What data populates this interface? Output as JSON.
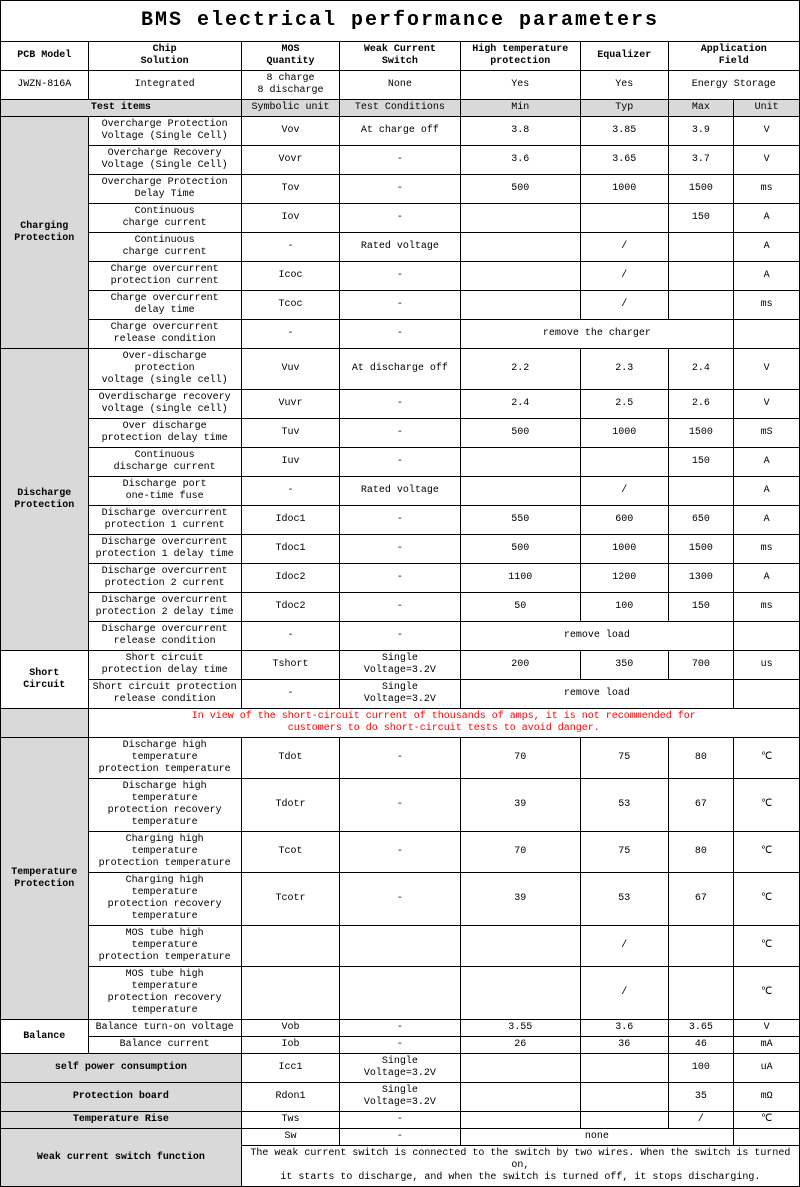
{
  "title": "BMS electrical performance parameters",
  "top_headers": [
    "PCB Model",
    "Chip\nSolution",
    "MOS\nQuantity",
    "Weak Current\nSwitch",
    "High temperature\nprotection",
    "Equalizer",
    "Application\nField"
  ],
  "top_values": [
    "JWZN-816A",
    "Integrated",
    "8 charge\n8 discharge",
    "None",
    "Yes",
    "Yes",
    "Energy Storage"
  ],
  "sub_headers": [
    "Test items",
    "Symbolic unit",
    "Test Conditions",
    "Min",
    "Typ",
    "Max",
    "Unit"
  ],
  "sections": {
    "charging": {
      "label": "Charging\nProtection",
      "rows": [
        {
          "item": "Overcharge Protection\nVoltage (Single Cell)",
          "sym": "Vov",
          "cond": "At charge off",
          "min": "3.8",
          "typ": "3.85",
          "max": "3.9",
          "unit": "V"
        },
        {
          "item": "Overcharge Recovery\nVoltage (Single Cell)",
          "sym": "Vovr",
          "cond": "-",
          "min": "3.6",
          "typ": "3.65",
          "max": "3.7",
          "unit": "V"
        },
        {
          "item": "Overcharge Protection\nDelay Time",
          "sym": "Tov",
          "cond": "-",
          "min": "500",
          "typ": "1000",
          "max": "1500",
          "unit": "ms"
        },
        {
          "item": "Continuous\ncharge current",
          "sym": "Iov",
          "cond": "-",
          "min": "",
          "typ": "",
          "max": "150",
          "unit": "A"
        },
        {
          "item": "Continuous\ncharge current",
          "sym": "-",
          "cond": "Rated voltage",
          "min": "",
          "typ": "/",
          "max": "",
          "unit": "A"
        },
        {
          "item": "Charge overcurrent\nprotection current",
          "sym": "Icoc",
          "cond": "-",
          "min": "",
          "typ": "/",
          "max": "",
          "unit": "A"
        },
        {
          "item": "Charge overcurrent\ndelay time",
          "sym": "Tcoc",
          "cond": "-",
          "min": "",
          "typ": "/",
          "max": "",
          "unit": "ms"
        },
        {
          "item": "Charge overcurrent\nrelease condition",
          "sym": "-",
          "cond": "-",
          "merged": "remove the charger",
          "unit": ""
        }
      ]
    },
    "discharge": {
      "label": "Discharge\nProtection",
      "rows": [
        {
          "item": "Over-discharge protection\nvoltage (single cell)",
          "sym": "Vuv",
          "cond": "At discharge off",
          "min": "2.2",
          "typ": "2.3",
          "max": "2.4",
          "unit": "V"
        },
        {
          "item": "Overdischarge recovery\nvoltage (single cell)",
          "sym": "Vuvr",
          "cond": "-",
          "min": "2.4",
          "typ": "2.5",
          "max": "2.6",
          "unit": "V"
        },
        {
          "item": "Over discharge\nprotection delay time",
          "sym": "Tuv",
          "cond": "-",
          "min": "500",
          "typ": "1000",
          "max": "1500",
          "unit": "mS"
        },
        {
          "item": "Continuous\ndischarge current",
          "sym": "Iuv",
          "cond": "-",
          "min": "",
          "typ": "",
          "max": "150",
          "unit": "A"
        },
        {
          "item": "Discharge port\none-time fuse",
          "sym": "-",
          "cond": "Rated voltage",
          "min": "",
          "typ": "/",
          "max": "",
          "unit": "A"
        },
        {
          "item": "Discharge overcurrent\nprotection 1 current",
          "sym": "Idoc1",
          "cond": "-",
          "min": "550",
          "typ": "600",
          "max": "650",
          "unit": "A"
        },
        {
          "item": "Discharge overcurrent\nprotection 1 delay time",
          "sym": "Tdoc1",
          "cond": "-",
          "min": "500",
          "typ": "1000",
          "max": "1500",
          "unit": "ms"
        },
        {
          "item": "Discharge overcurrent\nprotection 2 current",
          "sym": "Idoc2",
          "cond": "-",
          "min": "1100",
          "typ": "1200",
          "max": "1300",
          "unit": "A"
        },
        {
          "item": "Discharge overcurrent\nprotection 2 delay time",
          "sym": "Tdoc2",
          "cond": "-",
          "min": "50",
          "typ": "100",
          "max": "150",
          "unit": "ms"
        },
        {
          "item": "Discharge overcurrent\nrelease condition",
          "sym": "-",
          "cond": "-",
          "merged": "remove load",
          "unit": ""
        }
      ]
    },
    "short": {
      "label": "Short\nCircuit",
      "rows": [
        {
          "item": "Short circuit\nprotection delay time",
          "sym": "Tshort",
          "cond": "Single Voltage=3.2V",
          "min": "200",
          "typ": "350",
          "max": "700",
          "unit": "us"
        },
        {
          "item": "Short circuit protection\nrelease condition",
          "sym": "-",
          "cond": "Single Voltage=3.2V",
          "merged": "remove load",
          "unit": ""
        }
      ]
    },
    "warning": "In view of the short-circuit current of thousands of amps, it is not recommended for\ncustomers to do short-circuit tests to avoid danger.",
    "temp": {
      "label": "Temperature\nProtection",
      "rows": [
        {
          "item": "Discharge high temperature\nprotection temperature",
          "sym": "Tdot",
          "cond": "-",
          "min": "70",
          "typ": "75",
          "max": "80",
          "unit": "℃"
        },
        {
          "item": "Discharge high temperature\nprotection recovery\ntemperature",
          "sym": "Tdotr",
          "cond": "-",
          "min": "39",
          "typ": "53",
          "max": "67",
          "unit": "℃"
        },
        {
          "item": "Charging high temperature\nprotection temperature",
          "sym": "Tcot",
          "cond": "-",
          "min": "70",
          "typ": "75",
          "max": "80",
          "unit": "℃"
        },
        {
          "item": "Charging high temperature\nprotection recovery\ntemperature",
          "sym": "Tcotr",
          "cond": "-",
          "min": "39",
          "typ": "53",
          "max": "67",
          "unit": "℃"
        },
        {
          "item": "MOS tube high temperature\nprotection temperature",
          "sym": "",
          "cond": "",
          "min": "",
          "typ": "/",
          "max": "",
          "unit": "℃"
        },
        {
          "item": "MOS tube high temperature\nprotection recovery\ntemperature",
          "sym": "",
          "cond": "",
          "min": "",
          "typ": "/",
          "max": "",
          "unit": "℃"
        }
      ]
    },
    "balance": {
      "label": "Balance",
      "rows": [
        {
          "item": "Balance turn-on voltage",
          "sym": "Vob",
          "cond": "-",
          "min": "3.55",
          "typ": "3.6",
          "max": "3.65",
          "unit": "V"
        },
        {
          "item": "Balance current",
          "sym": "Iob",
          "cond": "-",
          "min": "26",
          "typ": "36",
          "max": "46",
          "unit": "mA"
        }
      ]
    },
    "simple_rows": [
      {
        "label": "self power consumption",
        "sym": "Icc1",
        "cond": "Single Voltage=3.2V",
        "min": "",
        "typ": "",
        "max": "100",
        "unit": "uA"
      },
      {
        "label": "Protection board",
        "sym": "Rdon1",
        "cond": "Single Voltage=3.2V",
        "min": "",
        "typ": "",
        "max": "35",
        "unit": "mΩ"
      },
      {
        "label": "Temperature Rise",
        "sym": "Tws",
        "cond": "-",
        "min": "",
        "typ": "",
        "max": "/",
        "unit": "℃"
      }
    ],
    "weak_switch": {
      "label": "Weak current switch function",
      "sym": "Sw",
      "cond": "-",
      "merged": "none",
      "note": "The weak current switch is connected to the switch by two wires. When the switch is turned on,\nit starts to discharge, and when the switch is turned off, it stops discharging."
    }
  }
}
